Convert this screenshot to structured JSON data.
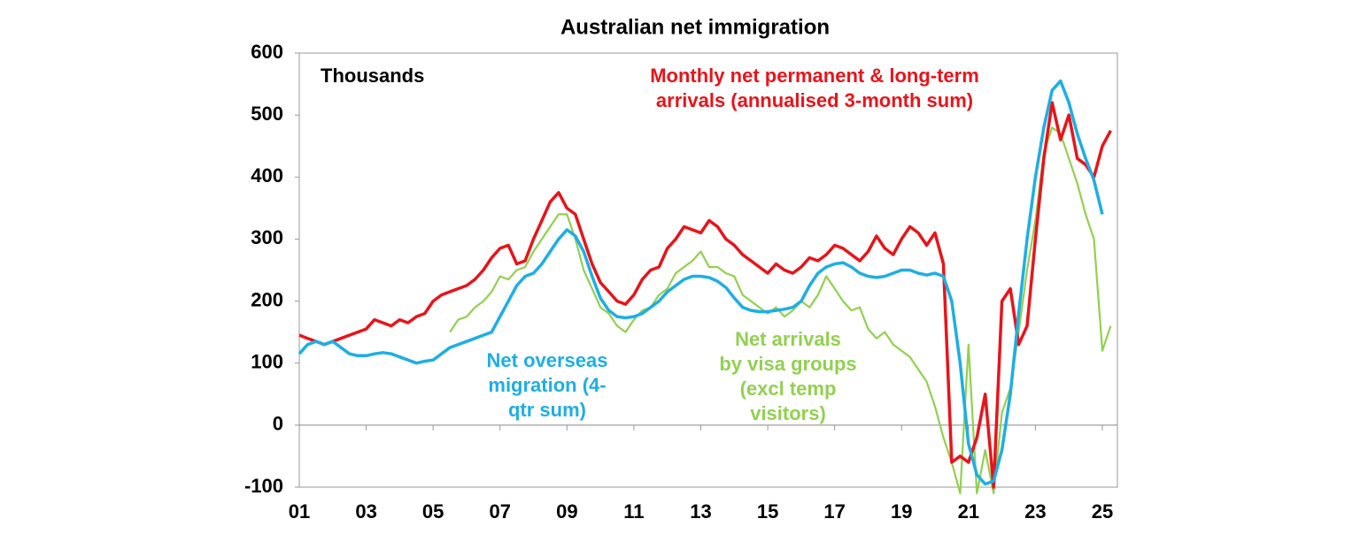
{
  "chart_data": {
    "type": "line",
    "title": "Australian net immigration",
    "y_label": "Thousands",
    "xlim": [
      1,
      25.45
    ],
    "ylim": [
      -100,
      600
    ],
    "xticks": [
      {
        "value": 1,
        "label": "01"
      },
      {
        "value": 3,
        "label": "03"
      },
      {
        "value": 5,
        "label": "05"
      },
      {
        "value": 7,
        "label": "07"
      },
      {
        "value": 9,
        "label": "09"
      },
      11,
      13,
      15,
      17,
      19,
      21,
      23,
      25
    ],
    "yticks": [
      -100,
      0,
      100,
      200,
      300,
      400,
      500,
      600
    ],
    "grid": false,
    "series": [
      {
        "name": "Monthly net permanent & long-term\narrivals (annualised 3-month sum)",
        "color": "#e8141b",
        "x": [
          1,
          1.25,
          1.5,
          1.75,
          2,
          2.25,
          2.5,
          2.75,
          3,
          3.25,
          3.5,
          3.75,
          4,
          4.25,
          4.5,
          4.75,
          5,
          5.25,
          5.5,
          5.75,
          6,
          6.25,
          6.5,
          6.75,
          7,
          7.25,
          7.5,
          7.75,
          8,
          8.25,
          8.5,
          8.75,
          9,
          9.25,
          9.5,
          9.75,
          10,
          10.25,
          10.5,
          10.75,
          11,
          11.25,
          11.5,
          11.75,
          12,
          12.25,
          12.5,
          12.75,
          13,
          13.25,
          13.5,
          13.75,
          14,
          14.25,
          14.5,
          14.75,
          15,
          15.25,
          15.5,
          15.75,
          16,
          16.25,
          16.5,
          16.75,
          17,
          17.25,
          17.5,
          17.75,
          18,
          18.25,
          18.5,
          18.75,
          19,
          19.25,
          19.5,
          19.75,
          20,
          20.25,
          20.5,
          20.75,
          21,
          21.25,
          21.5,
          21.75,
          22,
          22.25,
          22.5,
          22.75,
          23,
          23.25,
          23.5,
          23.75,
          24,
          24.25,
          24.5,
          24.75,
          25,
          25.25
        ],
        "values": [
          145,
          140,
          135,
          130,
          135,
          140,
          145,
          150,
          155,
          170,
          165,
          160,
          170,
          165,
          175,
          180,
          200,
          210,
          215,
          220,
          225,
          235,
          250,
          270,
          285,
          290,
          260,
          265,
          300,
          330,
          360,
          375,
          350,
          340,
          300,
          260,
          230,
          215,
          200,
          195,
          210,
          235,
          250,
          255,
          285,
          300,
          320,
          315,
          310,
          330,
          320,
          300,
          290,
          275,
          265,
          255,
          245,
          260,
          250,
          245,
          255,
          270,
          265,
          275,
          290,
          285,
          275,
          265,
          280,
          305,
          285,
          275,
          300,
          320,
          310,
          290,
          310,
          260,
          -60,
          -50,
          -60,
          -20,
          50,
          -100,
          200,
          220,
          130,
          160,
          300,
          430,
          520,
          460,
          500,
          430,
          420,
          400,
          450,
          475
        ]
      },
      {
        "name": "Net overseas\nmigration (4-\nqtr sum)",
        "color": "#1eaee4",
        "x": [
          1,
          1.25,
          1.5,
          1.75,
          2,
          2.25,
          2.5,
          2.75,
          3,
          3.25,
          3.5,
          3.75,
          4,
          4.25,
          4.5,
          4.75,
          5,
          5.25,
          5.5,
          5.75,
          6,
          6.25,
          6.5,
          6.75,
          7,
          7.25,
          7.5,
          7.75,
          8,
          8.25,
          8.5,
          8.75,
          9,
          9.25,
          9.5,
          9.75,
          10,
          10.25,
          10.5,
          10.75,
          11,
          11.25,
          11.5,
          11.75,
          12,
          12.25,
          12.5,
          12.75,
          13,
          13.25,
          13.5,
          13.75,
          14,
          14.25,
          14.5,
          14.75,
          15,
          15.25,
          15.5,
          15.75,
          16,
          16.25,
          16.5,
          16.75,
          17,
          17.25,
          17.5,
          17.75,
          18,
          18.25,
          18.5,
          18.75,
          19,
          19.25,
          19.5,
          19.75,
          20,
          20.25,
          20.5,
          20.75,
          21,
          21.25,
          21.5,
          21.75,
          22,
          22.25,
          22.5,
          22.75,
          23,
          23.25,
          23.5,
          23.75,
          24,
          24.25,
          24.5,
          24.75,
          25
        ],
        "values": [
          115,
          130,
          135,
          130,
          135,
          125,
          115,
          112,
          112,
          115,
          117,
          115,
          110,
          105,
          100,
          103,
          105,
          115,
          125,
          130,
          135,
          140,
          145,
          150,
          175,
          200,
          225,
          240,
          245,
          260,
          280,
          300,
          315,
          305,
          280,
          240,
          205,
          185,
          175,
          173,
          175,
          180,
          190,
          200,
          215,
          225,
          235,
          240,
          240,
          238,
          232,
          222,
          205,
          190,
          185,
          183,
          183,
          185,
          187,
          190,
          200,
          225,
          245,
          255,
          260,
          262,
          255,
          245,
          240,
          238,
          240,
          245,
          250,
          250,
          245,
          242,
          245,
          240,
          200,
          100,
          -30,
          -80,
          -95,
          -90,
          -40,
          50,
          180,
          300,
          400,
          480,
          540,
          555,
          520,
          470,
          430,
          395,
          340
        ]
      },
      {
        "name": "Net arrivals\nby visa groups\n(excl temp\nvisitors)",
        "color": "#92d050",
        "x": [
          5.5,
          5.75,
          6,
          6.25,
          6.5,
          6.75,
          7,
          7.25,
          7.5,
          7.75,
          8,
          8.25,
          8.5,
          8.75,
          9,
          9.25,
          9.5,
          9.75,
          10,
          10.25,
          10.5,
          10.75,
          11,
          11.25,
          11.5,
          11.75,
          12,
          12.25,
          12.5,
          12.75,
          13,
          13.25,
          13.5,
          13.75,
          14,
          14.25,
          14.5,
          14.75,
          15,
          15.25,
          15.5,
          15.75,
          16,
          16.25,
          16.5,
          16.75,
          17,
          17.25,
          17.5,
          17.75,
          18,
          18.25,
          18.5,
          18.75,
          19,
          19.25,
          19.5,
          19.75,
          20,
          20.25,
          20.5,
          20.75,
          21,
          21.25,
          21.5,
          21.75,
          22,
          22.25,
          22.5,
          22.75,
          23,
          23.25,
          23.5,
          23.75,
          24,
          24.25,
          24.5,
          24.75,
          25,
          25.25
        ],
        "values": [
          150,
          170,
          175,
          190,
          200,
          215,
          240,
          235,
          250,
          255,
          280,
          300,
          320,
          340,
          340,
          300,
          250,
          220,
          190,
          180,
          160,
          150,
          170,
          185,
          190,
          210,
          220,
          245,
          255,
          265,
          280,
          255,
          255,
          245,
          240,
          210,
          200,
          190,
          180,
          190,
          175,
          185,
          200,
          190,
          210,
          240,
          220,
          200,
          185,
          190,
          155,
          140,
          150,
          130,
          120,
          110,
          90,
          70,
          30,
          -20,
          -60,
          -110,
          130,
          -110,
          -40,
          -110,
          20,
          60,
          150,
          250,
          330,
          440,
          480,
          470,
          430,
          390,
          340,
          300,
          120,
          160
        ]
      }
    ]
  }
}
